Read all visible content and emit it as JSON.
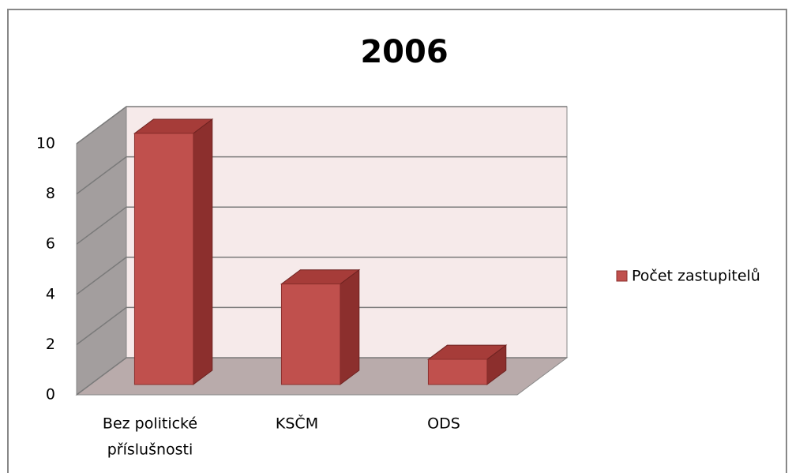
{
  "chart_data": {
    "type": "bar3d",
    "title": "2006",
    "categories": [
      [
        "Bez politické",
        "příslušnosti"
      ],
      [
        "KSČM"
      ],
      [
        "ODS"
      ]
    ],
    "series": [
      {
        "name": "Počet zastupitelů",
        "color": "#c0504d",
        "values": [
          10,
          4,
          1
        ]
      }
    ],
    "ylim": [
      0,
      10
    ],
    "yticks": [
      0,
      2,
      4,
      6,
      8,
      10
    ],
    "grid": true,
    "legend": "right"
  }
}
